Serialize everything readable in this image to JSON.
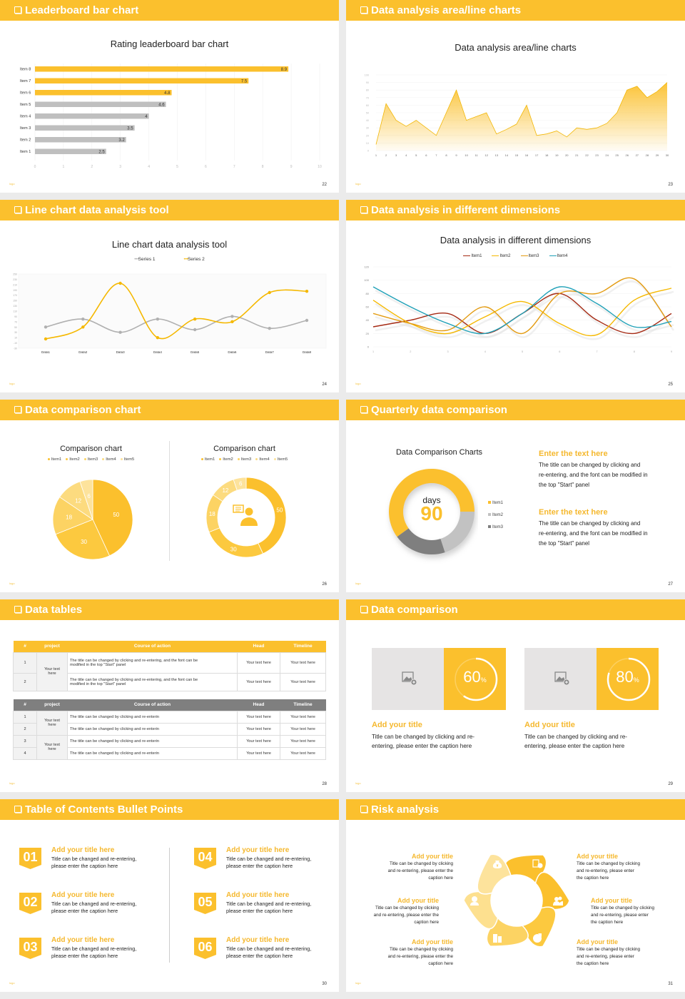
{
  "colors": {
    "accent": "#fbc02d",
    "gray_bar": "#bfbfbf",
    "dark_gray": "#888888",
    "bg": "#ebebeb"
  },
  "footer_logo": "logo",
  "slides": [
    {
      "header": "Leaderboard bar chart",
      "page": "22",
      "chart_title": "Rating leaderboard bar chart"
    },
    {
      "header": "Data analysis area/line charts",
      "page": "23",
      "chart_title": "Data analysis area/line charts"
    },
    {
      "header": "Line chart data analysis tool",
      "page": "24",
      "chart_title": "Line chart data analysis tool",
      "legend": [
        "Series 1",
        "Series 2"
      ]
    },
    {
      "header": "Data analysis in different dimensions",
      "page": "25",
      "chart_title": "Data analysis in different dimensions",
      "legend": [
        "Item1",
        "Item2",
        "Item3",
        "Item4"
      ]
    },
    {
      "header": "Data comparison chart",
      "page": "26",
      "left_title": "Comparison chart",
      "right_title": "Comparison chart",
      "legend": [
        "Item1",
        "Item2",
        "Item3",
        "Item4",
        "Item5"
      ]
    },
    {
      "header": "Quarterly data comparison",
      "page": "27",
      "chart_title": "Data Comparison Charts",
      "center_unit": "days",
      "center_value": "90",
      "legend": [
        "Item1",
        "Item2",
        "Item3"
      ],
      "blocks": [
        {
          "title": "Enter the text here",
          "lines": [
            "The title can be changed by clicking and",
            "re-entering, and the font can be modified in",
            "the top \"Start\" panel"
          ]
        },
        {
          "title": "Enter the text here",
          "lines": [
            "The title can be changed by clicking and",
            "re-entering, and the font can be modified in",
            "the top \"Start\" panel"
          ]
        }
      ]
    },
    {
      "header": "Data tables",
      "page": "28",
      "table1": {
        "headers": [
          "#",
          "project",
          "Course of action",
          "Head",
          "Timeline"
        ],
        "project": [
          "Your text",
          "here"
        ],
        "rows": [
          {
            "num": "1",
            "action": [
              "The title can be changed by clicking and re-entering, and the font can be",
              "modified in the top \"Start\" panel"
            ],
            "head": "Your text here",
            "timeline": "Your text here"
          },
          {
            "num": "2",
            "action": [
              "The title can be changed by clicking and re-entering, and the font can be",
              "modified in the top \"Start\" panel"
            ],
            "head": "Your text here",
            "timeline": "Your text here"
          }
        ]
      },
      "table2": {
        "headers": [
          "#",
          "project",
          "Course of action",
          "Head",
          "Timeline"
        ],
        "project_groups": [
          [
            "Your text",
            "here"
          ],
          [
            "Your text",
            "here"
          ]
        ],
        "rows": [
          {
            "num": "1",
            "action": "The title can be changed by clicking and re-enterin",
            "head": "Your text here",
            "timeline": "Your text here"
          },
          {
            "num": "2",
            "action": "The title can be changed by clicking and re-enterin",
            "head": "Your text here",
            "timeline": "Your text here"
          },
          {
            "num": "3",
            "action": "The title can be changed by clicking and re-enterin",
            "head": "Your text here",
            "timeline": "Your text here"
          },
          {
            "num": "4",
            "action": "The title can be changed by clicking and re-enterin",
            "head": "Your text here",
            "timeline": "Your text here"
          }
        ]
      }
    },
    {
      "header": "Data comparison",
      "page": "29",
      "cards": [
        {
          "percent": "60",
          "unit": "%",
          "title": "Add your title",
          "lines": [
            "Title can be changed by clicking and re-",
            "entering, please enter the caption here"
          ]
        },
        {
          "percent": "80",
          "unit": "%",
          "title": "Add your title",
          "lines": [
            "Title can be changed by clicking and re-",
            "entering, please enter the caption here"
          ]
        }
      ]
    },
    {
      "header": "Table of Contents Bullet Points",
      "page": "30",
      "items": [
        {
          "num": "01",
          "title": "Add your title here",
          "lines": [
            "Title can be changed and re-entering,",
            "please enter the caption here"
          ]
        },
        {
          "num": "02",
          "title": "Add your title here",
          "lines": [
            "Title can be changed and re-entering,",
            "please enter the caption here"
          ]
        },
        {
          "num": "03",
          "title": "Add your title here",
          "lines": [
            "Title can be changed and re-entering,",
            "please enter the caption here"
          ]
        },
        {
          "num": "04",
          "title": "Add your title here",
          "lines": [
            "Title can be changed and re-entering,",
            "please enter the caption here"
          ]
        },
        {
          "num": "05",
          "title": "Add your title here",
          "lines": [
            "Title can be changed and re-entering,",
            "please enter the caption here"
          ]
        },
        {
          "num": "06",
          "title": "Add your title here",
          "lines": [
            "Title can be changed and re-entering,",
            "please enter the caption here"
          ]
        }
      ]
    },
    {
      "header": "Risk analysis",
      "page": "31",
      "left": [
        {
          "title": "Add your title",
          "lines": [
            "Title can be changed by clicking",
            "and re-entering, please enter the",
            "caption here"
          ]
        },
        {
          "title": "Add your title",
          "lines": [
            "Title can be changed by clicking",
            "and re-entering, please enter the",
            "caption here"
          ]
        },
        {
          "title": "Add your title",
          "lines": [
            "Title can be changed by clicking",
            "and re-entering, please enter the",
            "caption here"
          ]
        }
      ],
      "right": [
        {
          "title": "Add your title",
          "lines": [
            "Title can be changed by clicking",
            "and re-entering, please enter",
            "the caption here"
          ]
        },
        {
          "title": "Add your title",
          "lines": [
            "Title can be changed by clicking",
            "and re-entering, please enter",
            "the caption here"
          ]
        },
        {
          "title": "Add your title",
          "lines": [
            "Title can be changed by clicking",
            "and re-entering, please enter",
            "the caption here"
          ]
        }
      ],
      "icons": [
        "money-bag-icon",
        "coins-icon",
        "people-icon",
        "pie-chart-icon",
        "buildings-icon",
        "worker-icon"
      ]
    }
  ],
  "chart_data": [
    {
      "type": "bar",
      "orientation": "horizontal",
      "title": "Rating leaderboard bar chart",
      "categories": [
        "Item 8",
        "Item 7",
        "Item 6",
        "Item 5",
        "Item 4",
        "Item 3",
        "Item 2",
        "Item 1"
      ],
      "values": [
        8.9,
        7.5,
        4.8,
        4.6,
        4,
        3.5,
        3.2,
        2.5
      ],
      "highlight_top": 3,
      "xlim": [
        0,
        10
      ],
      "xticks": [
        0,
        1,
        2,
        3,
        4,
        5,
        6,
        7,
        8,
        9,
        10
      ]
    },
    {
      "type": "area",
      "title": "Data analysis area/line charts",
      "x": [
        1,
        2,
        3,
        4,
        5,
        6,
        7,
        8,
        9,
        10,
        11,
        12,
        13,
        14,
        15,
        16,
        17,
        18,
        19,
        20,
        21,
        22,
        23,
        24,
        25,
        26,
        27,
        28,
        29,
        30
      ],
      "values": [
        8,
        62,
        40,
        32,
        40,
        30,
        20,
        50,
        80,
        40,
        45,
        50,
        22,
        28,
        35,
        60,
        20,
        22,
        26,
        18,
        30,
        28,
        30,
        36,
        50,
        80,
        85,
        70,
        78,
        90
      ],
      "ylim": [
        0,
        100
      ],
      "yticks": [
        0,
        10,
        20,
        30,
        40,
        50,
        60,
        70,
        80,
        90,
        100
      ]
    },
    {
      "type": "line",
      "title": "Line chart data analysis tool",
      "categories": [
        "Data1",
        "Data2",
        "Data3",
        "Data4",
        "Data5",
        "Data6",
        "Data7",
        "Data8"
      ],
      "series": [
        {
          "name": "Series 1",
          "values": [
            50,
            80,
            30,
            80,
            40,
            90,
            45,
            75
          ]
        },
        {
          "name": "Series 2",
          "values": [
            5,
            50,
            215,
            10,
            80,
            70,
            180,
            185
          ]
        }
      ],
      "ylim": [
        -30,
        250
      ],
      "yticks": [
        250,
        230,
        210,
        190,
        170,
        150,
        130,
        110,
        90,
        70,
        50,
        30,
        10,
        -10,
        -30
      ],
      "legend_position": "top"
    },
    {
      "type": "line",
      "title": "Data analysis in different dimensions",
      "categories": [
        "1",
        "2",
        "3",
        "4",
        "5",
        "6",
        "7",
        "8",
        "9"
      ],
      "series": [
        {
          "name": "Item1",
          "values": [
            30,
            40,
            50,
            20,
            50,
            80,
            40,
            20,
            50
          ]
        },
        {
          "name": "Item2",
          "values": [
            70,
            35,
            20,
            45,
            68,
            35,
            18,
            70,
            88
          ]
        },
        {
          "name": "Item3",
          "values": [
            50,
            35,
            25,
            60,
            20,
            80,
            80,
            102,
            30
          ]
        },
        {
          "name": "Item4",
          "values": [
            90,
            60,
            35,
            20,
            50,
            90,
            65,
            30,
            38
          ]
        }
      ],
      "ylim": [
        0,
        120
      ],
      "yticks": [
        0,
        20,
        40,
        60,
        80,
        100,
        120
      ],
      "legend_position": "top"
    },
    {
      "type": "pie",
      "title": "Comparison chart",
      "categories": [
        "Item1",
        "Item2",
        "Item3",
        "Item4",
        "Item5"
      ],
      "values": [
        50,
        30,
        18,
        12,
        6
      ]
    },
    {
      "type": "pie",
      "variant": "donut",
      "title": "Comparison chart",
      "categories": [
        "Item1",
        "Item2",
        "Item3",
        "Item4",
        "Item5"
      ],
      "values": [
        50,
        30,
        18,
        12,
        6
      ]
    },
    {
      "type": "pie",
      "variant": "donut",
      "title": "Data Comparison Charts",
      "categories": [
        "Item1",
        "Item2",
        "Item3"
      ],
      "values": [
        60,
        20,
        20
      ],
      "center_label": "days 90"
    }
  ]
}
